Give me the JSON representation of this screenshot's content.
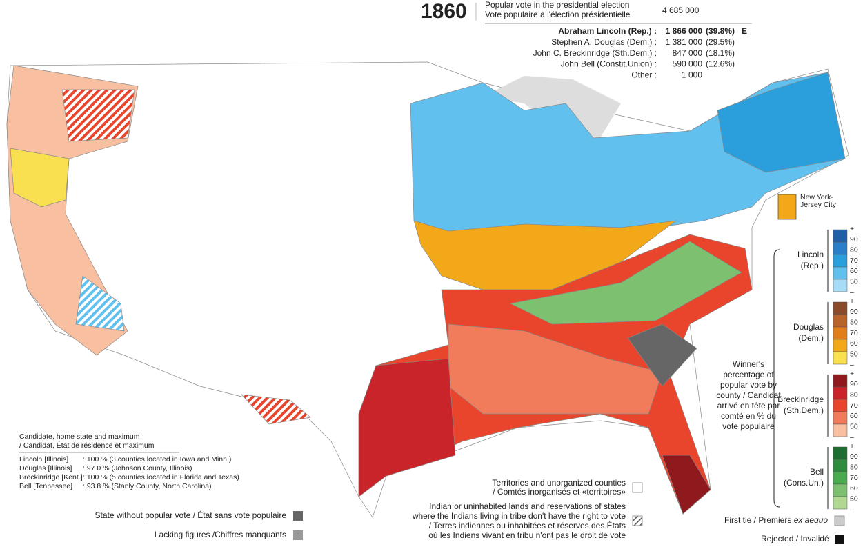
{
  "header": {
    "year": "1860",
    "popular_vote_label_en": "Popular vote in the presidential election",
    "popular_vote_label_fr": "Vote populaire à l'élection présidentielle",
    "popular_vote_total": "4 685 000"
  },
  "results": [
    {
      "name": "Abraham Lincoln (Rep.) :",
      "votes": "1 866 000",
      "share": "(39.8%)",
      "mark": "E"
    },
    {
      "name": "Stephen A. Douglas (Dem.) :",
      "votes": "1 381 000",
      "share": "(29.5%)"
    },
    {
      "name": "John C. Breckinridge (Sth.Dem.) :",
      "votes": "847 000",
      "share": "(18.1%)"
    },
    {
      "name": "John Bell (Constit.Union) :",
      "votes": "590 000",
      "share": "(12.6%)"
    },
    {
      "name": "Other :",
      "votes": "1 000"
    }
  ],
  "legend": {
    "ticks": [
      "+",
      "90",
      "80",
      "70",
      "60",
      "50",
      "–"
    ],
    "scales": [
      {
        "label": [
          "Lincoln",
          "(Rep.)"
        ],
        "colors": [
          "#1f5fa8",
          "#2a7fc8",
          "#2b9fdc",
          "#62c0ee",
          "#a6dcf5"
        ]
      },
      {
        "label": [
          "Douglas",
          "(Dem.)"
        ],
        "colors": [
          "#8b4a2a",
          "#b8632a",
          "#e07f1a",
          "#f2a818",
          "#f8e050"
        ]
      },
      {
        "label": [
          "Breckinridge",
          "(Sth.Dem.)"
        ],
        "colors": [
          "#8e1a1e",
          "#c8242a",
          "#e8452c",
          "#f07c5c",
          "#f8c0a0"
        ]
      },
      {
        "label": [
          "Bell",
          "(Cons.Un.)"
        ],
        "colors": [
          "#1e6e32",
          "#2e8c3e",
          "#4aaa50",
          "#7cc070",
          "#b0d890"
        ]
      }
    ],
    "caption": [
      "Winner's",
      "percentage of",
      "popular vote by",
      "county / Candidat",
      "arrivé en tête par",
      "comté en % du",
      "vote populaire"
    ]
  },
  "inset_label": [
    "New York-",
    "Jersey City"
  ],
  "maximum_box": {
    "title": [
      "Candidate, home state and maximum",
      "/ Candidat, État de résidence et maximum"
    ],
    "rows": [
      [
        "Lincoln [Illinois]",
        ": 100 % (3 counties located in Iowa and Minn.)"
      ],
      [
        "Douglas [Illinois]",
        ":   97.0 % (Johnson County, Illinois)"
      ],
      [
        "Breckinridge [Kent.]",
        ": 100 % (5 counties located in Florida and Texas)"
      ],
      [
        "Bell [Tennessee]",
        ":   93.8 % (Stanly County, North Carolina)"
      ]
    ]
  },
  "notes": {
    "no_popular_vote": "State without popular vote / État sans vote populaire",
    "lacking_figures": "Lacking figures /Chiffres manquants",
    "territories": [
      "Territories and unorganized counties",
      "/ Comtés inorganisés et «territoires»"
    ],
    "indian_lands": [
      "Indian or uninhabited lands and reservations of states",
      "where the Indians living in tribe don't have the right to vote",
      "/ Terres indiennes ou inhabitées et réserves des États",
      "où les Indiens vivant en tribu n'ont pas le droit de vote"
    ],
    "first_tie": "First tie / Premiers ",
    "first_tie_italic": "ex aequo",
    "rejected": "Rejected / Invalidé"
  }
}
